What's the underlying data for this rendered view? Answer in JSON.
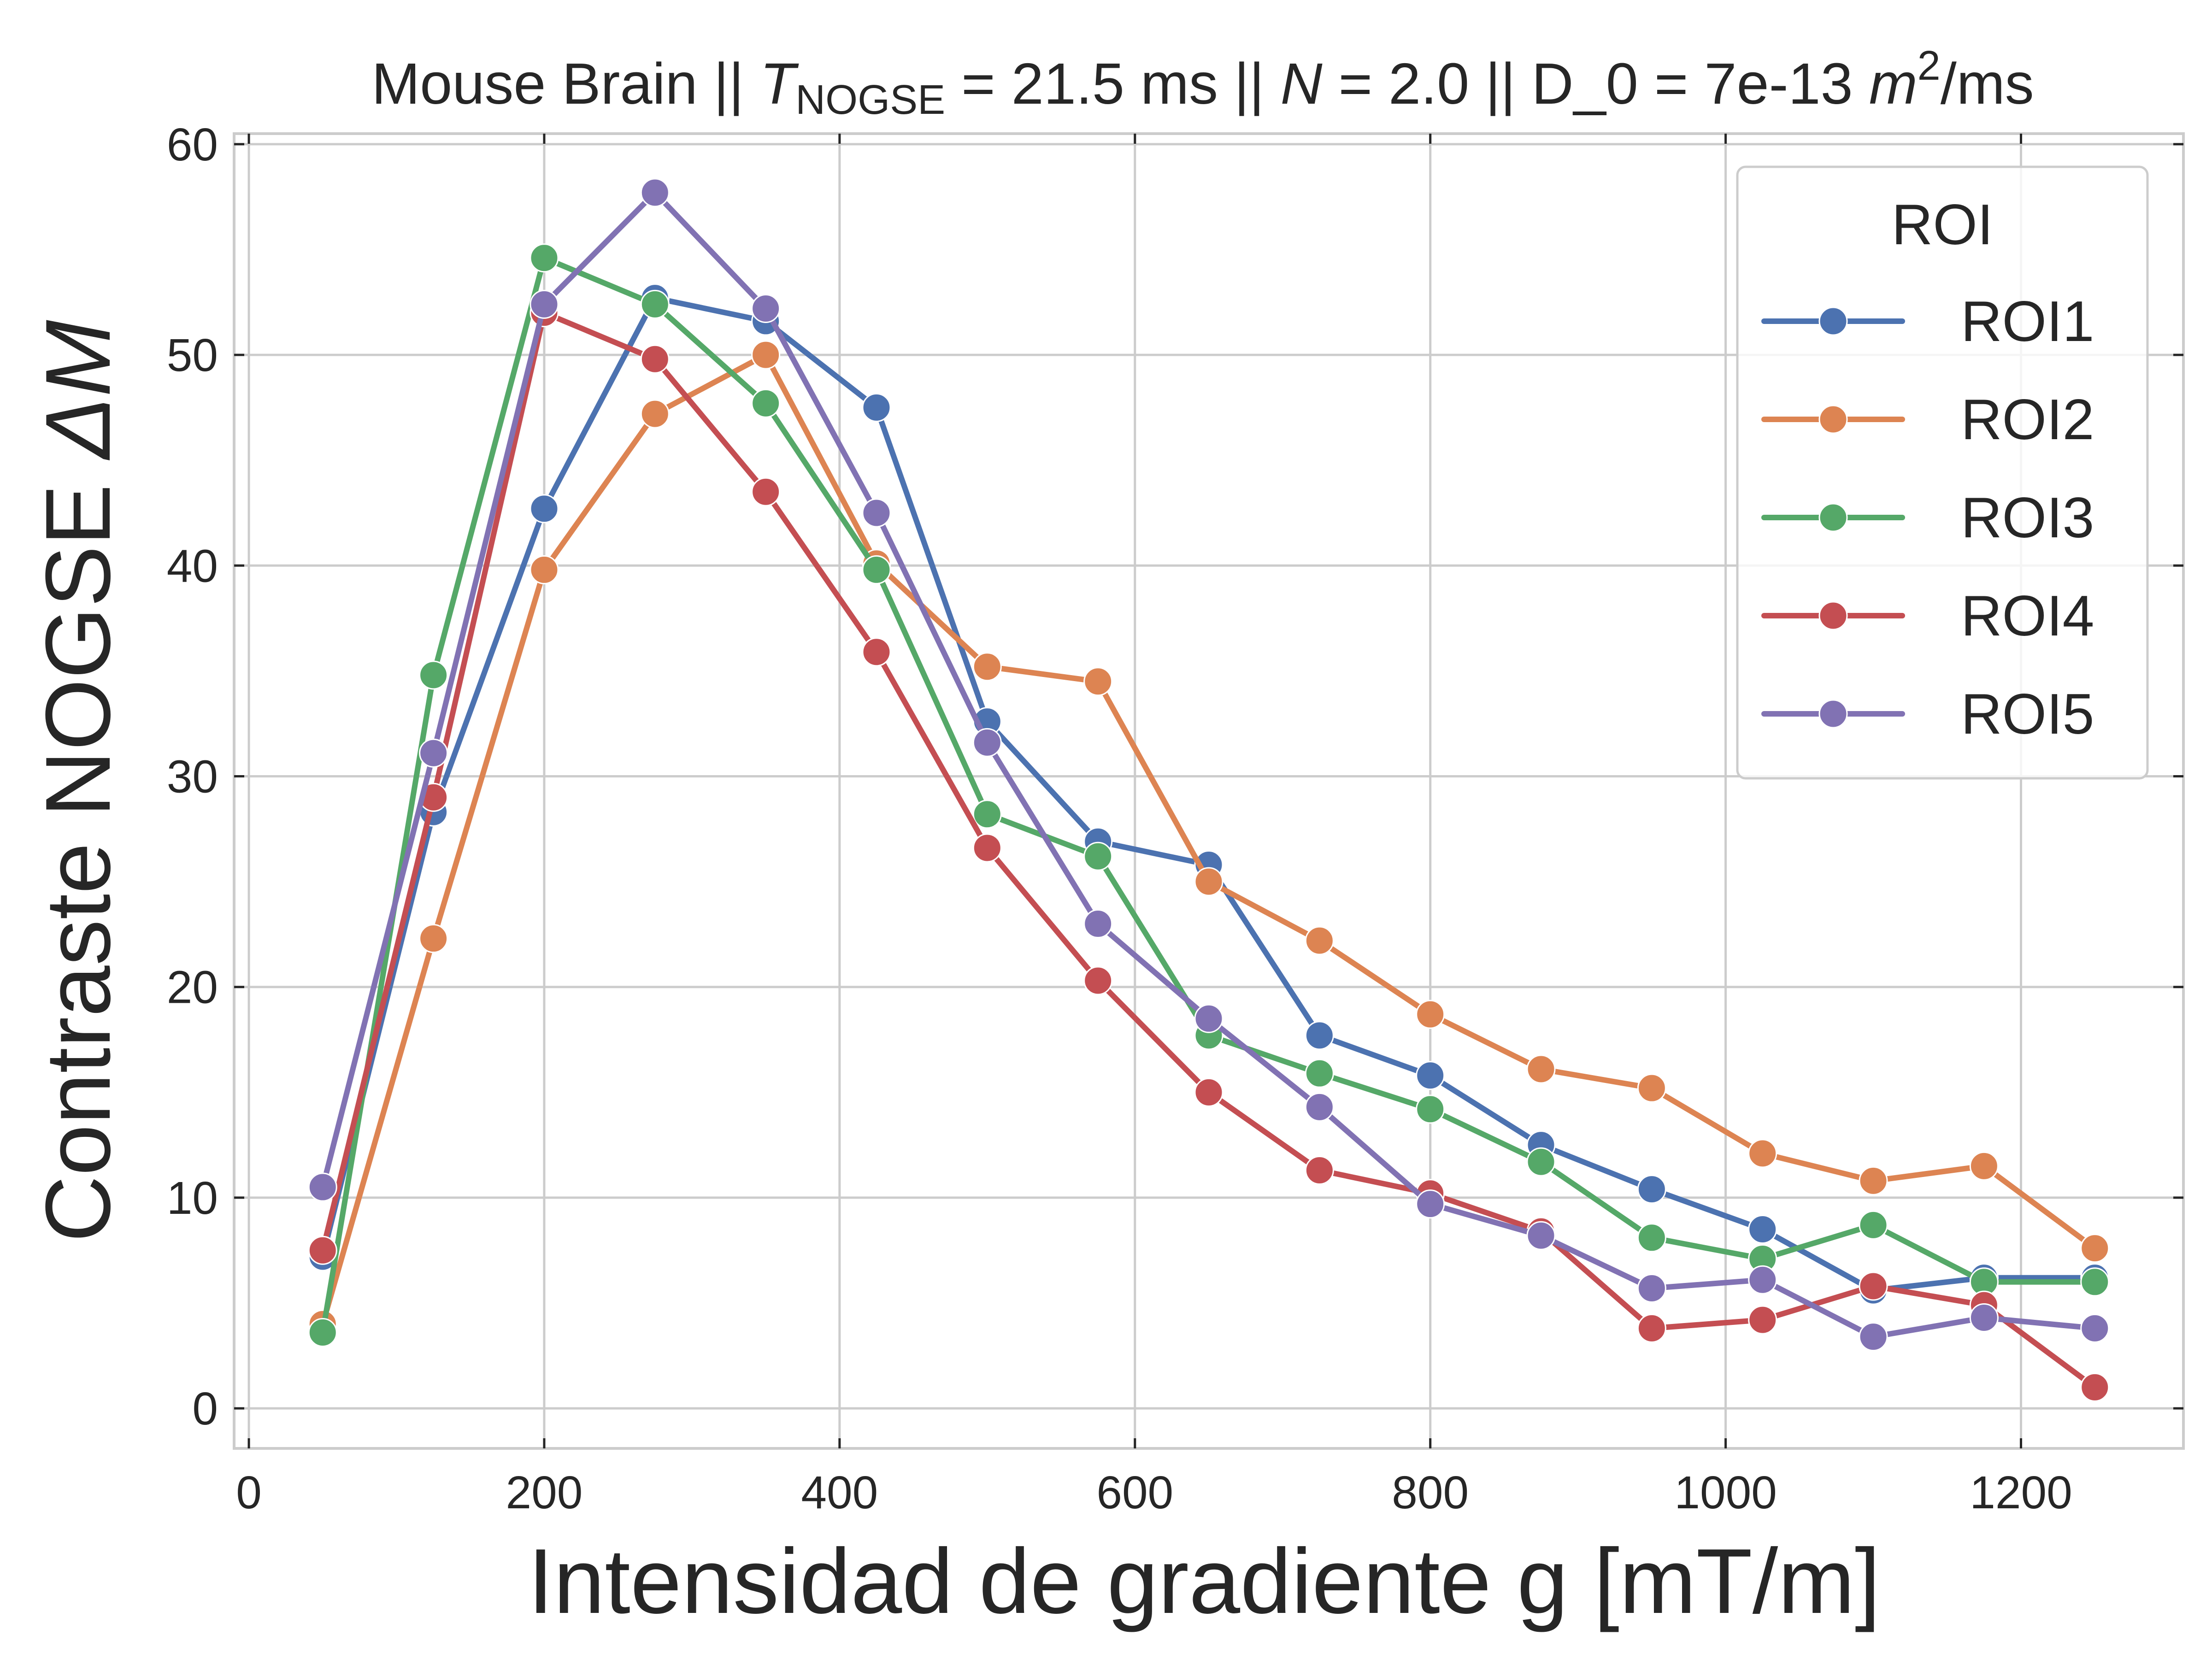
{
  "chart_data": {
    "type": "line",
    "title": {
      "prefix": "Mouse Brain || ",
      "t_symbol": "T",
      "t_subscript": "NOGSE",
      "t_value": " = 21.5 ms || ",
      "n_symbol": "N",
      "n_value": " = 2.0 || D_0 = 7e-13 ",
      "unit_base": "m",
      "unit_exp": "2",
      "unit_tail": "/ms"
    },
    "xlabel": "Intensidad de gradiente g [mT/m]",
    "ylabel": {
      "text": "Contraste NOGSE ",
      "symbol": "ΔM"
    },
    "xlim": [
      -10,
      1310
    ],
    "ylim": [
      -1.9,
      60.5
    ],
    "xticks": [
      0,
      200,
      400,
      600,
      800,
      1000,
      1200
    ],
    "yticks": [
      0,
      10,
      20,
      30,
      40,
      50,
      60
    ],
    "grid": true,
    "legend": {
      "title": "ROI",
      "placement": "top-right"
    },
    "x": [
      50,
      125,
      200,
      275,
      350,
      425,
      500,
      575,
      650,
      725,
      800,
      875,
      950,
      1025,
      1100,
      1175,
      1250
    ],
    "series": [
      {
        "name": "ROI1",
        "color": "#4c72b0",
        "values": [
          7.2,
          28.3,
          42.7,
          52.7,
          51.6,
          47.5,
          32.6,
          26.9,
          25.8,
          17.7,
          15.8,
          12.5,
          10.4,
          8.5,
          5.6,
          6.2,
          6.2
        ]
      },
      {
        "name": "ROI2",
        "color": "#dd8452",
        "values": [
          4.0,
          22.3,
          39.8,
          47.2,
          50.0,
          40.1,
          35.2,
          34.5,
          25.0,
          22.2,
          18.7,
          16.1,
          15.2,
          12.1,
          10.8,
          11.5,
          7.6
        ]
      },
      {
        "name": "ROI3",
        "color": "#55a868",
        "values": [
          3.6,
          34.8,
          54.6,
          52.4,
          47.7,
          39.8,
          28.2,
          26.2,
          17.7,
          15.9,
          14.2,
          11.7,
          8.1,
          7.1,
          8.7,
          6.0,
          6.0
        ]
      },
      {
        "name": "ROI4",
        "color": "#c44e52",
        "values": [
          7.5,
          29.0,
          52.0,
          49.8,
          43.5,
          35.9,
          26.6,
          20.3,
          15.0,
          11.3,
          10.2,
          8.4,
          3.8,
          4.2,
          5.8,
          4.9,
          1.0
        ]
      },
      {
        "name": "ROI5",
        "color": "#8172b3",
        "values": [
          10.5,
          31.1,
          52.4,
          57.7,
          52.2,
          42.5,
          31.6,
          23.0,
          18.5,
          14.3,
          9.7,
          8.2,
          5.7,
          6.1,
          3.4,
          4.3,
          3.8
        ]
      }
    ]
  }
}
